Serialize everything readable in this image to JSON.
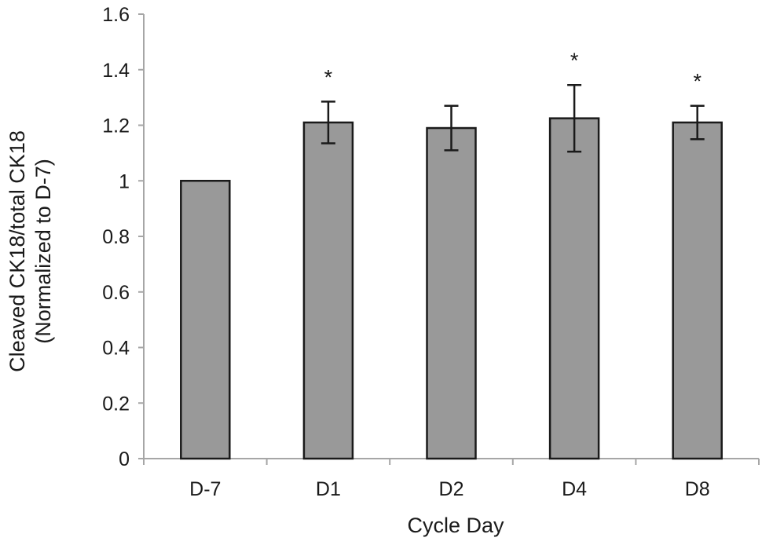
{
  "chart_data": {
    "type": "bar",
    "title": "",
    "xlabel": "Cycle Day",
    "ylabel_line1": "Cleaved CK18/total CK18",
    "ylabel_line2": "(Normalized to D-7)",
    "categories": [
      "D-7",
      "D1",
      "D2",
      "D4",
      "D8"
    ],
    "values": [
      1.0,
      1.21,
      1.19,
      1.225,
      1.21
    ],
    "error": [
      0.0,
      0.075,
      0.08,
      0.12,
      0.06
    ],
    "significance": [
      "",
      "*",
      "",
      "*",
      "*"
    ],
    "ylim": [
      0,
      1.6
    ],
    "yticks": [
      "0",
      "0.2",
      "0.4",
      "0.6",
      "0.8",
      "1",
      "1.2",
      "1.4",
      "1.6"
    ],
    "grid": false,
    "legend": "none",
    "colors": {
      "bar_fill": "#999999",
      "bar_stroke": "#1a1a1a",
      "axis": "#a6a6a6",
      "text": "#1a1a1a"
    }
  }
}
